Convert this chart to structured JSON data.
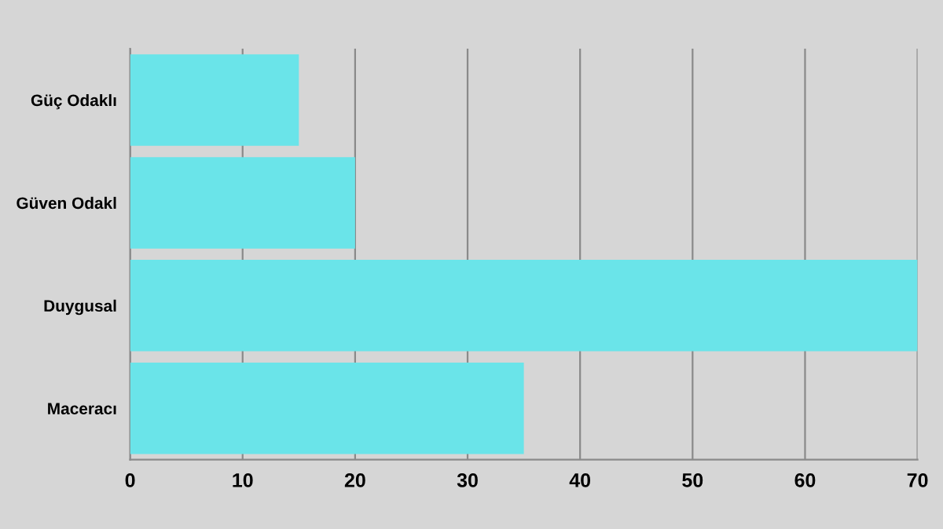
{
  "chart_data": {
    "type": "bar",
    "orientation": "horizontal",
    "categories": [
      "Güç Odaklı",
      "Güven Odakl",
      "Duygusal",
      "Maceracı"
    ],
    "values": [
      15,
      20,
      70,
      35
    ],
    "color": "#6ae4e9",
    "xlim": [
      0,
      70
    ],
    "xticks": [
      0,
      10,
      20,
      30,
      40,
      50,
      60,
      70
    ],
    "grid": "x",
    "legend": false
  }
}
